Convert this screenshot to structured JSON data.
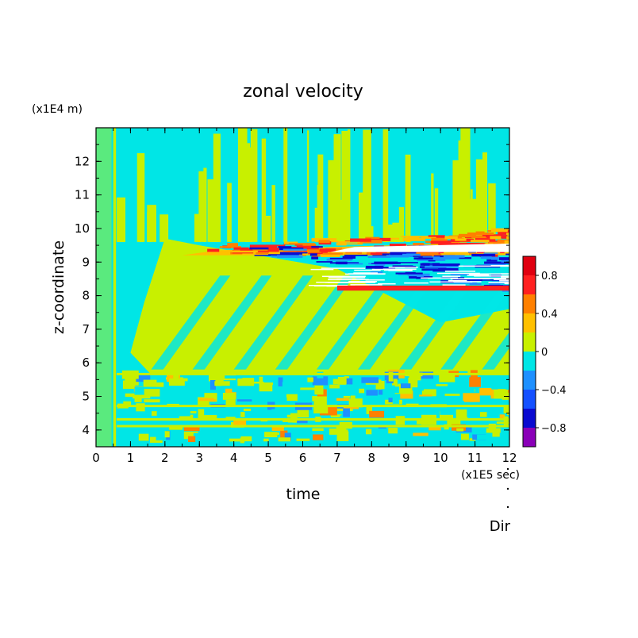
{
  "chart_data": {
    "type": "heatmap",
    "title": "zonal velocity",
    "xlabel": "time",
    "ylabel": "z-coordinate",
    "x_unit": "(x1E5 sec)",
    "y_unit": "(x1E4 m)",
    "footer_label": "Dir",
    "xlim": [
      0,
      12
    ],
    "ylim": [
      3.5,
      13
    ],
    "x_ticks": [
      0,
      1,
      2,
      3,
      4,
      5,
      6,
      7,
      8,
      9,
      10,
      11,
      12
    ],
    "y_ticks": [
      4,
      5,
      6,
      7,
      8,
      9,
      10,
      11,
      12
    ],
    "colorbar": {
      "range": [
        -1,
        1
      ],
      "levels": [
        -1,
        -0.8,
        -0.6,
        -0.4,
        -0.2,
        0,
        0.2,
        0.4,
        0.6,
        0.8,
        1
      ],
      "colors": [
        "#8a00b8",
        "#0a0ad0",
        "#1450ff",
        "#1e90ff",
        "#00e6e6",
        "#c8f000",
        "#ffc000",
        "#ff8000",
        "#ff2020",
        "#e00010",
        "#ffaaaa"
      ],
      "tick_values": [
        0.8,
        0.4,
        0,
        -0.4,
        -0.8
      ],
      "tick_labels": [
        "0.8",
        "0.4",
        "0",
        "−0.4",
        "−0.8"
      ]
    }
  },
  "colors": {
    "background": "#00e6e6",
    "positive_weak": "#c8f000",
    "positive_mid": "#ffc000",
    "positive_strong": "#ff8000",
    "red": "#ff2020",
    "negative_weak": "#1e90ff",
    "negative_strong": "#0a0ad0",
    "saturated": "#ffffff"
  }
}
